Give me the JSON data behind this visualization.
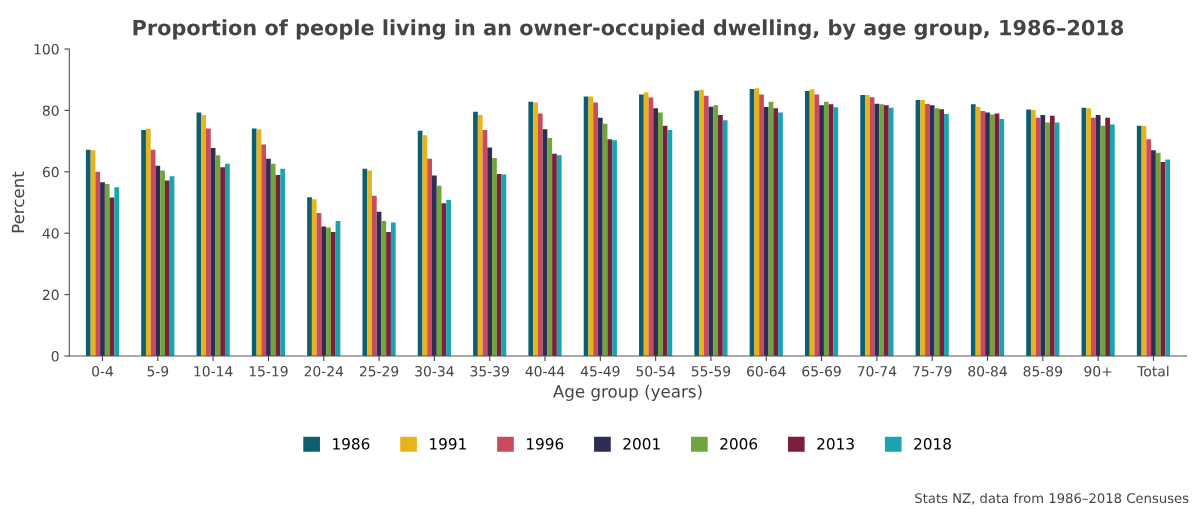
{
  "chart_data": {
    "type": "bar",
    "title": "Proportion of people living in an owner-occupied dwelling, by age group, 1986–2018",
    "xlabel": "Age group (years)",
    "ylabel": "Percent",
    "categories": [
      "0-4",
      "5-9",
      "10-14",
      "15-19",
      "20-24",
      "25-29",
      "30-34",
      "35-39",
      "40-44",
      "45-49",
      "50-54",
      "55-59",
      "60-64",
      "65-69",
      "70-74",
      "75-79",
      "80-84",
      "85-89",
      "90+",
      "Total"
    ],
    "series": [
      {
        "name": "1986",
        "color": "#0e5e6f",
        "values": [
          67.2,
          73.6,
          79.3,
          74.1,
          51.7,
          61,
          73.4,
          79.6,
          82.8,
          84.5,
          85.2,
          86.4,
          87,
          86.3,
          85,
          83.4,
          82,
          80.3,
          80.9,
          75
        ]
      },
      {
        "name": "1991",
        "color": "#e8b41c",
        "values": [
          67,
          74,
          78.5,
          73.9,
          51.1,
          60.4,
          71.9,
          78.5,
          82.6,
          84.5,
          85.9,
          86.7,
          87.2,
          86.9,
          85,
          83.4,
          81.2,
          80.1,
          80.7,
          74.9
        ]
      },
      {
        "name": "1996",
        "color": "#c84c5c",
        "values": [
          60,
          67.2,
          74.1,
          68.9,
          46.6,
          52.2,
          64.3,
          73.6,
          79,
          82.6,
          84.2,
          84.8,
          85.2,
          85.2,
          84.3,
          82.1,
          79.8,
          77.6,
          77.6,
          70.6
        ]
      },
      {
        "name": "2001",
        "color": "#2e2d55",
        "values": [
          56.6,
          62,
          67.8,
          64.3,
          42.2,
          47,
          58.8,
          67.9,
          73.9,
          77.6,
          80.7,
          81.2,
          81.1,
          81.7,
          82.2,
          81.7,
          79.3,
          78.5,
          78.5,
          67
        ]
      },
      {
        "name": "2006",
        "color": "#6fa53c",
        "values": [
          56,
          60.4,
          65.4,
          62.6,
          41.9,
          44,
          55.5,
          64.5,
          71,
          75.7,
          79.3,
          81.7,
          82.8,
          82.8,
          82,
          80.7,
          78.7,
          76.1,
          75,
          66.2
        ]
      },
      {
        "name": "2013",
        "color": "#7b1f3a",
        "values": [
          51.6,
          57.2,
          61.5,
          59,
          40.4,
          40.4,
          49.8,
          59.3,
          65.9,
          70.6,
          75,
          78.5,
          80.7,
          82,
          81.7,
          80.4,
          79,
          78.3,
          77.6,
          63.2
        ]
      },
      {
        "name": "2018",
        "color": "#1aa3b0",
        "values": [
          55,
          58.6,
          62.6,
          61,
          44,
          43.5,
          50.8,
          59.1,
          65.4,
          70.3,
          73.6,
          76.8,
          79.3,
          81,
          80.9,
          78.8,
          77.2,
          76.1,
          75.4,
          64
        ]
      }
    ],
    "ylim": [
      0,
      100
    ],
    "yticks": [
      0,
      20,
      40,
      60,
      80,
      100
    ],
    "grid": false,
    "legend": "bottom",
    "annotations": [
      "Stats NZ, data from 1986–2018 Censuses"
    ]
  }
}
